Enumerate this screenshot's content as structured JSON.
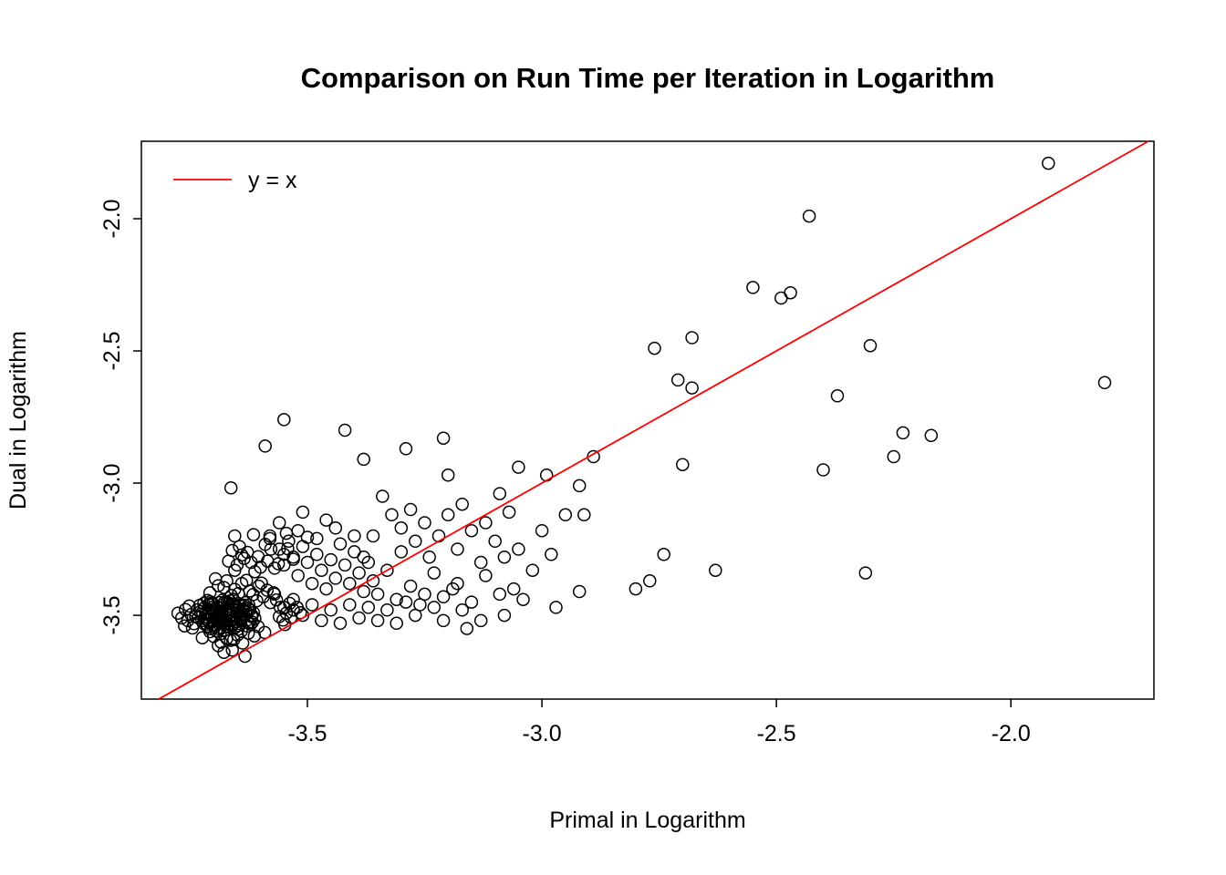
{
  "chart_data": {
    "type": "scatter",
    "title": "Comparison on Run Time per Iteration in Logarithm",
    "xlabel": "Primal in Logarithm",
    "ylabel": "Dual in Logarithm",
    "xlim": [
      -3.854,
      -1.695
    ],
    "ylim": [
      -3.817,
      -1.707
    ],
    "x_ticks": [
      -3.5,
      -3.0,
      -2.5,
      -2.0
    ],
    "y_ticks": [
      -2.0,
      -2.5,
      -3.0,
      -3.5
    ],
    "grid": false,
    "legend_position": "top-left",
    "point_color": "#000000",
    "background": "#FFFFFF",
    "reference_line": {
      "label": "y = x",
      "slope": 1,
      "intercept": 0,
      "color": "#FF0000"
    },
    "points": [
      [
        -3.712,
        -3.495
      ],
      [
        -3.684,
        -3.512
      ],
      [
        -3.667,
        -3.478
      ],
      [
        -3.701,
        -3.523
      ],
      [
        -3.645,
        -3.502
      ],
      [
        -3.728,
        -3.486
      ],
      [
        -3.659,
        -3.531
      ],
      [
        -3.692,
        -3.468
      ],
      [
        -3.676,
        -3.508
      ],
      [
        -3.714,
        -3.541
      ],
      [
        -3.638,
        -3.476
      ],
      [
        -3.705,
        -3.455
      ],
      [
        -3.672,
        -3.542
      ],
      [
        -3.651,
        -3.489
      ],
      [
        -3.687,
        -3.525
      ],
      [
        -3.72,
        -3.472
      ],
      [
        -3.663,
        -3.498
      ],
      [
        -3.697,
        -3.536
      ],
      [
        -3.641,
        -3.515
      ],
      [
        -3.709,
        -3.461
      ],
      [
        -3.655,
        -3.548
      ],
      [
        -3.681,
        -3.443
      ],
      [
        -3.733,
        -3.509
      ],
      [
        -3.624,
        -3.528
      ],
      [
        -3.668,
        -3.465
      ],
      [
        -3.699,
        -3.492
      ],
      [
        -3.647,
        -3.538
      ],
      [
        -3.716,
        -3.506
      ],
      [
        -3.632,
        -3.452
      ],
      [
        -3.678,
        -3.519
      ],
      [
        -3.704,
        -3.479
      ],
      [
        -3.661,
        -3.457
      ],
      [
        -3.689,
        -3.551
      ],
      [
        -3.636,
        -3.497
      ],
      [
        -3.722,
        -3.53
      ],
      [
        -3.653,
        -3.47
      ],
      [
        -3.695,
        -3.514
      ],
      [
        -3.628,
        -3.541
      ],
      [
        -3.67,
        -3.488
      ],
      [
        -3.707,
        -3.449
      ],
      [
        -3.642,
        -3.522
      ],
      [
        -3.675,
        -3.533
      ],
      [
        -3.73,
        -3.463
      ],
      [
        -3.619,
        -3.505
      ],
      [
        -3.686,
        -3.474
      ],
      [
        -3.657,
        -3.516
      ],
      [
        -3.698,
        -3.545
      ],
      [
        -3.634,
        -3.462
      ],
      [
        -3.711,
        -3.518
      ],
      [
        -3.665,
        -3.446
      ],
      [
        -3.691,
        -3.5
      ],
      [
        -3.648,
        -3.553
      ],
      [
        -3.717,
        -3.491
      ],
      [
        -3.626,
        -3.473
      ],
      [
        -3.679,
        -3.526
      ],
      [
        -3.702,
        -3.458
      ],
      [
        -3.639,
        -3.509
      ],
      [
        -3.673,
        -3.481
      ],
      [
        -3.725,
        -3.52
      ],
      [
        -3.656,
        -3.46
      ],
      [
        -3.688,
        -3.49
      ],
      [
        -3.621,
        -3.534
      ],
      [
        -3.708,
        -3.528
      ],
      [
        -3.66,
        -3.475
      ],
      [
        -3.694,
        -3.507
      ],
      [
        -3.63,
        -3.488
      ],
      [
        -3.677,
        -3.556
      ],
      [
        -3.713,
        -3.444
      ],
      [
        -3.644,
        -3.499
      ],
      [
        -3.683,
        -3.461
      ],
      [
        -3.65,
        -3.524
      ],
      [
        -3.719,
        -3.513
      ],
      [
        -3.615,
        -3.49
      ],
      [
        -3.671,
        -3.45
      ],
      [
        -3.7,
        -3.537
      ],
      [
        -3.637,
        -3.466
      ],
      [
        -3.666,
        -3.521
      ],
      [
        -3.727,
        -3.495
      ],
      [
        -3.612,
        -3.512
      ],
      [
        -3.682,
        -3.484
      ],
      [
        -3.658,
        -3.439
      ],
      [
        -3.69,
        -3.517
      ],
      [
        -3.623,
        -3.479
      ],
      [
        -3.706,
        -3.551
      ],
      [
        -3.64,
        -3.493
      ],
      [
        -3.669,
        -3.457
      ],
      [
        -3.735,
        -3.479
      ],
      [
        -3.617,
        -3.526
      ],
      [
        -3.685,
        -3.503
      ],
      [
        -3.652,
        -3.467
      ],
      [
        -3.696,
        -3.484
      ],
      [
        -3.629,
        -3.518
      ],
      [
        -3.703,
        -3.47
      ],
      [
        -3.662,
        -3.54
      ],
      [
        -3.688,
        -3.452
      ],
      [
        -3.618,
        -3.5
      ],
      [
        -3.674,
        -3.529
      ],
      [
        -3.71,
        -3.486
      ],
      [
        -3.646,
        -3.456
      ],
      [
        -3.68,
        -3.512
      ],
      [
        -3.654,
        -3.545
      ],
      [
        -3.721,
        -3.455
      ],
      [
        -3.631,
        -3.496
      ],
      [
        -3.667,
        -3.536
      ],
      [
        -3.699,
        -3.477
      ],
      [
        -3.625,
        -3.461
      ],
      [
        -3.693,
        -3.522
      ],
      [
        -3.643,
        -3.487
      ],
      [
        -3.676,
        -3.449
      ],
      [
        -3.715,
        -3.533
      ],
      [
        -3.7,
        -3.58
      ],
      [
        -3.664,
        -3.595
      ],
      [
        -3.686,
        -3.57
      ],
      [
        -3.638,
        -3.605
      ],
      [
        -3.672,
        -3.588
      ],
      [
        -3.708,
        -3.562
      ],
      [
        -3.649,
        -3.575
      ],
      [
        -3.69,
        -3.615
      ],
      [
        -3.626,
        -3.568
      ],
      [
        -3.657,
        -3.592
      ],
      [
        -3.678,
        -3.64
      ],
      [
        -3.613,
        -3.578
      ],
      [
        -3.695,
        -3.558
      ],
      [
        -3.641,
        -3.56
      ],
      [
        -3.724,
        -3.585
      ],
      [
        -3.605,
        -3.543
      ],
      [
        -3.66,
        -3.632
      ],
      [
        -3.633,
        -3.655
      ],
      [
        -3.684,
        -3.602
      ],
      [
        -3.591,
        -3.565
      ],
      [
        -3.776,
        -3.492
      ],
      [
        -3.768,
        -3.51
      ],
      [
        -3.76,
        -3.478
      ],
      [
        -3.755,
        -3.52
      ],
      [
        -3.748,
        -3.497
      ],
      [
        -3.742,
        -3.532
      ],
      [
        -3.752,
        -3.465
      ],
      [
        -3.738,
        -3.505
      ],
      [
        -3.745,
        -3.548
      ],
      [
        -3.762,
        -3.54
      ],
      [
        -3.69,
        -3.388
      ],
      [
        -3.655,
        -3.402
      ],
      [
        -3.672,
        -3.37
      ],
      [
        -3.708,
        -3.415
      ],
      [
        -3.64,
        -3.38
      ],
      [
        -3.623,
        -3.408
      ],
      [
        -3.662,
        -3.425
      ],
      [
        -3.696,
        -3.362
      ],
      [
        -3.647,
        -3.418
      ],
      [
        -3.678,
        -3.395
      ],
      [
        -3.63,
        -3.368
      ],
      [
        -3.604,
        -3.39
      ],
      [
        -3.616,
        -3.422
      ],
      [
        -3.586,
        -3.405
      ],
      [
        -3.598,
        -3.378
      ],
      [
        -3.572,
        -3.415
      ],
      [
        -3.608,
        -3.445
      ],
      [
        -3.579,
        -3.452
      ],
      [
        -3.594,
        -3.43
      ],
      [
        -3.566,
        -3.442
      ],
      [
        -3.558,
        -3.47
      ],
      [
        -3.545,
        -3.492
      ],
      [
        -3.552,
        -3.518
      ],
      [
        -3.538,
        -3.455
      ],
      [
        -3.56,
        -3.505
      ],
      [
        -3.53,
        -3.48
      ],
      [
        -3.548,
        -3.535
      ],
      [
        -3.522,
        -3.47
      ],
      [
        -3.535,
        -3.508
      ],
      [
        -3.515,
        -3.49
      ],
      [
        -3.668,
        -3.295
      ],
      [
        -3.65,
        -3.31
      ],
      [
        -3.635,
        -3.285
      ],
      [
        -3.655,
        -3.33
      ],
      [
        -3.62,
        -3.3
      ],
      [
        -3.6,
        -3.318
      ],
      [
        -3.64,
        -3.272
      ],
      [
        -3.612,
        -3.335
      ],
      [
        -3.585,
        -3.295
      ],
      [
        -3.57,
        -3.322
      ],
      [
        -3.66,
        -3.255
      ],
      [
        -3.628,
        -3.262
      ],
      [
        -3.645,
        -3.24
      ],
      [
        -3.605,
        -3.278
      ],
      [
        -3.578,
        -3.25
      ],
      [
        -3.55,
        -3.27
      ],
      [
        -3.562,
        -3.305
      ],
      [
        -3.53,
        -3.288
      ],
      [
        -3.59,
        -3.232
      ],
      [
        -3.542,
        -3.248
      ],
      [
        -3.655,
        -3.2
      ],
      [
        -3.615,
        -3.195
      ],
      [
        -3.58,
        -3.21
      ],
      [
        -3.545,
        -3.19
      ],
      [
        -3.5,
        -3.205
      ],
      [
        -3.663,
        -3.018
      ],
      [
        -3.58,
        -3.2
      ],
      [
        -3.56,
        -3.25
      ],
      [
        -3.55,
        -3.31
      ],
      [
        -3.54,
        -3.22
      ],
      [
        -3.53,
        -3.28
      ],
      [
        -3.52,
        -3.35
      ],
      [
        -3.51,
        -3.24
      ],
      [
        -3.5,
        -3.3
      ],
      [
        -3.49,
        -3.38
      ],
      [
        -3.48,
        -3.27
      ],
      [
        -3.47,
        -3.33
      ],
      [
        -3.46,
        -3.4
      ],
      [
        -3.45,
        -3.29
      ],
      [
        -3.44,
        -3.36
      ],
      [
        -3.43,
        -3.23
      ],
      [
        -3.42,
        -3.31
      ],
      [
        -3.41,
        -3.38
      ],
      [
        -3.4,
        -3.26
      ],
      [
        -3.39,
        -3.34
      ],
      [
        -3.38,
        -3.41
      ],
      [
        -3.37,
        -3.3
      ],
      [
        -3.36,
        -3.37
      ],
      [
        -3.57,
        -3.42
      ],
      [
        -3.55,
        -3.47
      ],
      [
        -3.53,
        -3.44
      ],
      [
        -3.51,
        -3.5
      ],
      [
        -3.49,
        -3.46
      ],
      [
        -3.47,
        -3.52
      ],
      [
        -3.45,
        -3.48
      ],
      [
        -3.43,
        -3.53
      ],
      [
        -3.41,
        -3.46
      ],
      [
        -3.39,
        -3.51
      ],
      [
        -3.37,
        -3.47
      ],
      [
        -3.35,
        -3.52
      ],
      [
        -3.33,
        -3.48
      ],
      [
        -3.31,
        -3.53
      ],
      [
        -3.29,
        -3.45
      ],
      [
        -3.27,
        -3.5
      ],
      [
        -3.25,
        -3.42
      ],
      [
        -3.23,
        -3.47
      ],
      [
        -3.21,
        -3.52
      ],
      [
        -3.19,
        -3.4
      ],
      [
        -3.17,
        -3.48
      ],
      [
        -3.56,
        -3.15
      ],
      [
        -3.52,
        -3.18
      ],
      [
        -3.48,
        -3.21
      ],
      [
        -3.44,
        -3.17
      ],
      [
        -3.4,
        -3.2
      ],
      [
        -3.34,
        -3.05
      ],
      [
        -3.32,
        -3.12
      ],
      [
        -3.3,
        -3.17
      ],
      [
        -3.28,
        -3.1
      ],
      [
        -3.27,
        -3.22
      ],
      [
        -3.25,
        -3.15
      ],
      [
        -3.24,
        -3.28
      ],
      [
        -3.22,
        -3.2
      ],
      [
        -3.2,
        -3.12
      ],
      [
        -3.18,
        -3.25
      ],
      [
        -3.17,
        -3.08
      ],
      [
        -3.15,
        -3.18
      ],
      [
        -3.13,
        -3.3
      ],
      [
        -3.12,
        -3.15
      ],
      [
        -3.1,
        -3.22
      ],
      [
        -3.08,
        -3.28
      ],
      [
        -3.07,
        -3.11
      ],
      [
        -3.05,
        -3.25
      ],
      [
        -3.12,
        -3.35
      ],
      [
        -3.18,
        -3.38
      ],
      [
        -3.23,
        -3.34
      ],
      [
        -3.28,
        -3.39
      ],
      [
        -3.33,
        -3.33
      ],
      [
        -3.09,
        -3.42
      ],
      [
        -3.15,
        -3.45
      ],
      [
        -3.21,
        -3.43
      ],
      [
        -3.26,
        -3.46
      ],
      [
        -3.31,
        -3.44
      ],
      [
        -3.02,
        -3.33
      ],
      [
        -2.98,
        -3.27
      ],
      [
        -3.0,
        -3.18
      ],
      [
        -3.36,
        -3.2
      ],
      [
        -3.38,
        -3.28
      ],
      [
        -3.35,
        -3.42
      ],
      [
        -3.3,
        -3.26
      ],
      [
        -3.51,
        -3.11
      ],
      [
        -3.46,
        -3.14
      ],
      [
        -3.16,
        -3.55
      ],
      [
        -3.13,
        -3.52
      ],
      [
        -3.08,
        -3.5
      ],
      [
        -2.97,
        -3.47
      ],
      [
        -3.04,
        -3.44
      ],
      [
        -3.06,
        -3.4
      ],
      [
        -2.92,
        -3.41
      ],
      [
        -1.92,
        -1.79
      ],
      [
        -2.43,
        -1.99
      ],
      [
        -2.55,
        -2.26
      ],
      [
        -2.49,
        -2.3
      ],
      [
        -2.47,
        -2.28
      ],
      [
        -2.76,
        -2.49
      ],
      [
        -2.68,
        -2.45
      ],
      [
        -2.3,
        -2.48
      ],
      [
        -2.71,
        -2.61
      ],
      [
        -2.68,
        -2.64
      ],
      [
        -2.37,
        -2.67
      ],
      [
        -1.8,
        -2.62
      ],
      [
        -2.23,
        -2.81
      ],
      [
        -2.17,
        -2.82
      ],
      [
        -2.25,
        -2.9
      ],
      [
        -2.4,
        -2.95
      ],
      [
        -2.7,
        -2.93
      ],
      [
        -2.63,
        -3.33
      ],
      [
        -2.8,
        -3.4
      ],
      [
        -2.77,
        -3.37
      ],
      [
        -2.74,
        -3.27
      ],
      [
        -2.89,
        -2.9
      ],
      [
        -2.92,
        -3.01
      ],
      [
        -3.55,
        -2.76
      ],
      [
        -3.59,
        -2.86
      ],
      [
        -3.42,
        -2.8
      ],
      [
        -3.38,
        -2.91
      ],
      [
        -3.21,
        -2.83
      ],
      [
        -3.2,
        -2.97
      ],
      [
        -3.05,
        -2.94
      ],
      [
        -2.99,
        -2.97
      ],
      [
        -3.09,
        -3.04
      ],
      [
        -2.95,
        -3.12
      ],
      [
        -2.91,
        -3.12
      ],
      [
        -3.29,
        -2.87
      ],
      [
        -2.31,
        -3.34
      ]
    ]
  }
}
